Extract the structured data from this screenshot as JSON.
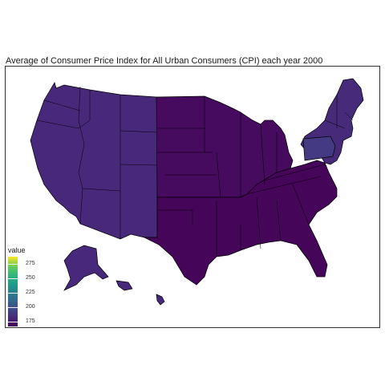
{
  "title": "Average of Consumer Price Index for All Urban Consumers (CPI) each year 2000",
  "legend": {
    "title": "value",
    "ticks": [
      "275",
      "250",
      "225",
      "200",
      "175"
    ],
    "range": [
      165,
      285
    ],
    "colormap": "viridis"
  },
  "regions": [
    {
      "name": "West",
      "value": 184,
      "color": "#48287a"
    },
    {
      "name": "Midwest",
      "value": 172,
      "color": "#460b5e"
    },
    {
      "name": "South",
      "value": 168,
      "color": "#450559"
    },
    {
      "name": "Northeast",
      "value": 183,
      "color": "#472a7a"
    },
    {
      "name": "Pennsylvania",
      "value": 190,
      "color": "#443983"
    }
  ]
}
